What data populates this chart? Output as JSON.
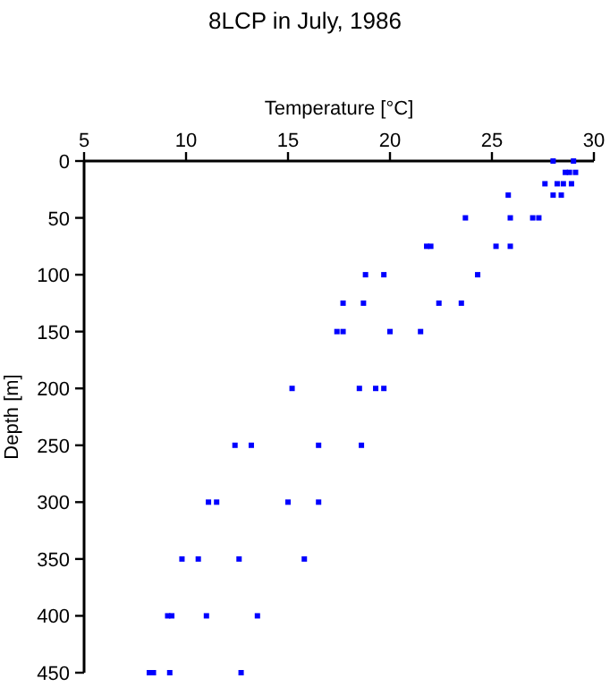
{
  "chart_data": {
    "type": "scatter",
    "title": "8LCP in July, 1986",
    "xlabel": "Temperature [°C]",
    "ylabel": "Depth [m]",
    "marker": "square",
    "grid": false,
    "xlim": [
      5,
      30
    ],
    "xticks": [
      5,
      10,
      15,
      20,
      25,
      30
    ],
    "ylim": [
      450,
      0
    ],
    "yticks": [
      0,
      50,
      100,
      150,
      200,
      250,
      300,
      350,
      400,
      450
    ],
    "series": [
      {
        "color": "#0000ff",
        "x": [
          28.0,
          29.0,
          28.6,
          28.8,
          29.1,
          27.6,
          28.2,
          28.5,
          28.9,
          25.8,
          28.0,
          28.4,
          23.7,
          25.9,
          27.0,
          27.3,
          21.8,
          22.0,
          25.2,
          25.9,
          18.8,
          19.7,
          24.3,
          17.7,
          18.7,
          22.4,
          23.5,
          17.4,
          17.7,
          20.0,
          21.5,
          15.2,
          18.5,
          19.3,
          19.7,
          12.4,
          13.2,
          16.5,
          18.6,
          11.1,
          11.5,
          15.0,
          16.5,
          9.8,
          10.6,
          12.6,
          15.8,
          9.1,
          9.3,
          11.0,
          13.5,
          8.2,
          8.4,
          9.2,
          12.7
        ],
        "values": [
          0,
          0,
          10,
          10,
          10,
          20,
          20,
          20,
          20,
          30,
          30,
          30,
          50,
          50,
          50,
          50,
          75,
          75,
          75,
          75,
          100,
          100,
          100,
          125,
          125,
          125,
          125,
          150,
          150,
          150,
          150,
          200,
          200,
          200,
          200,
          250,
          250,
          250,
          250,
          300,
          300,
          300,
          300,
          350,
          350,
          350,
          350,
          400,
          400,
          400,
          400,
          450,
          450,
          450,
          450
        ]
      }
    ]
  }
}
